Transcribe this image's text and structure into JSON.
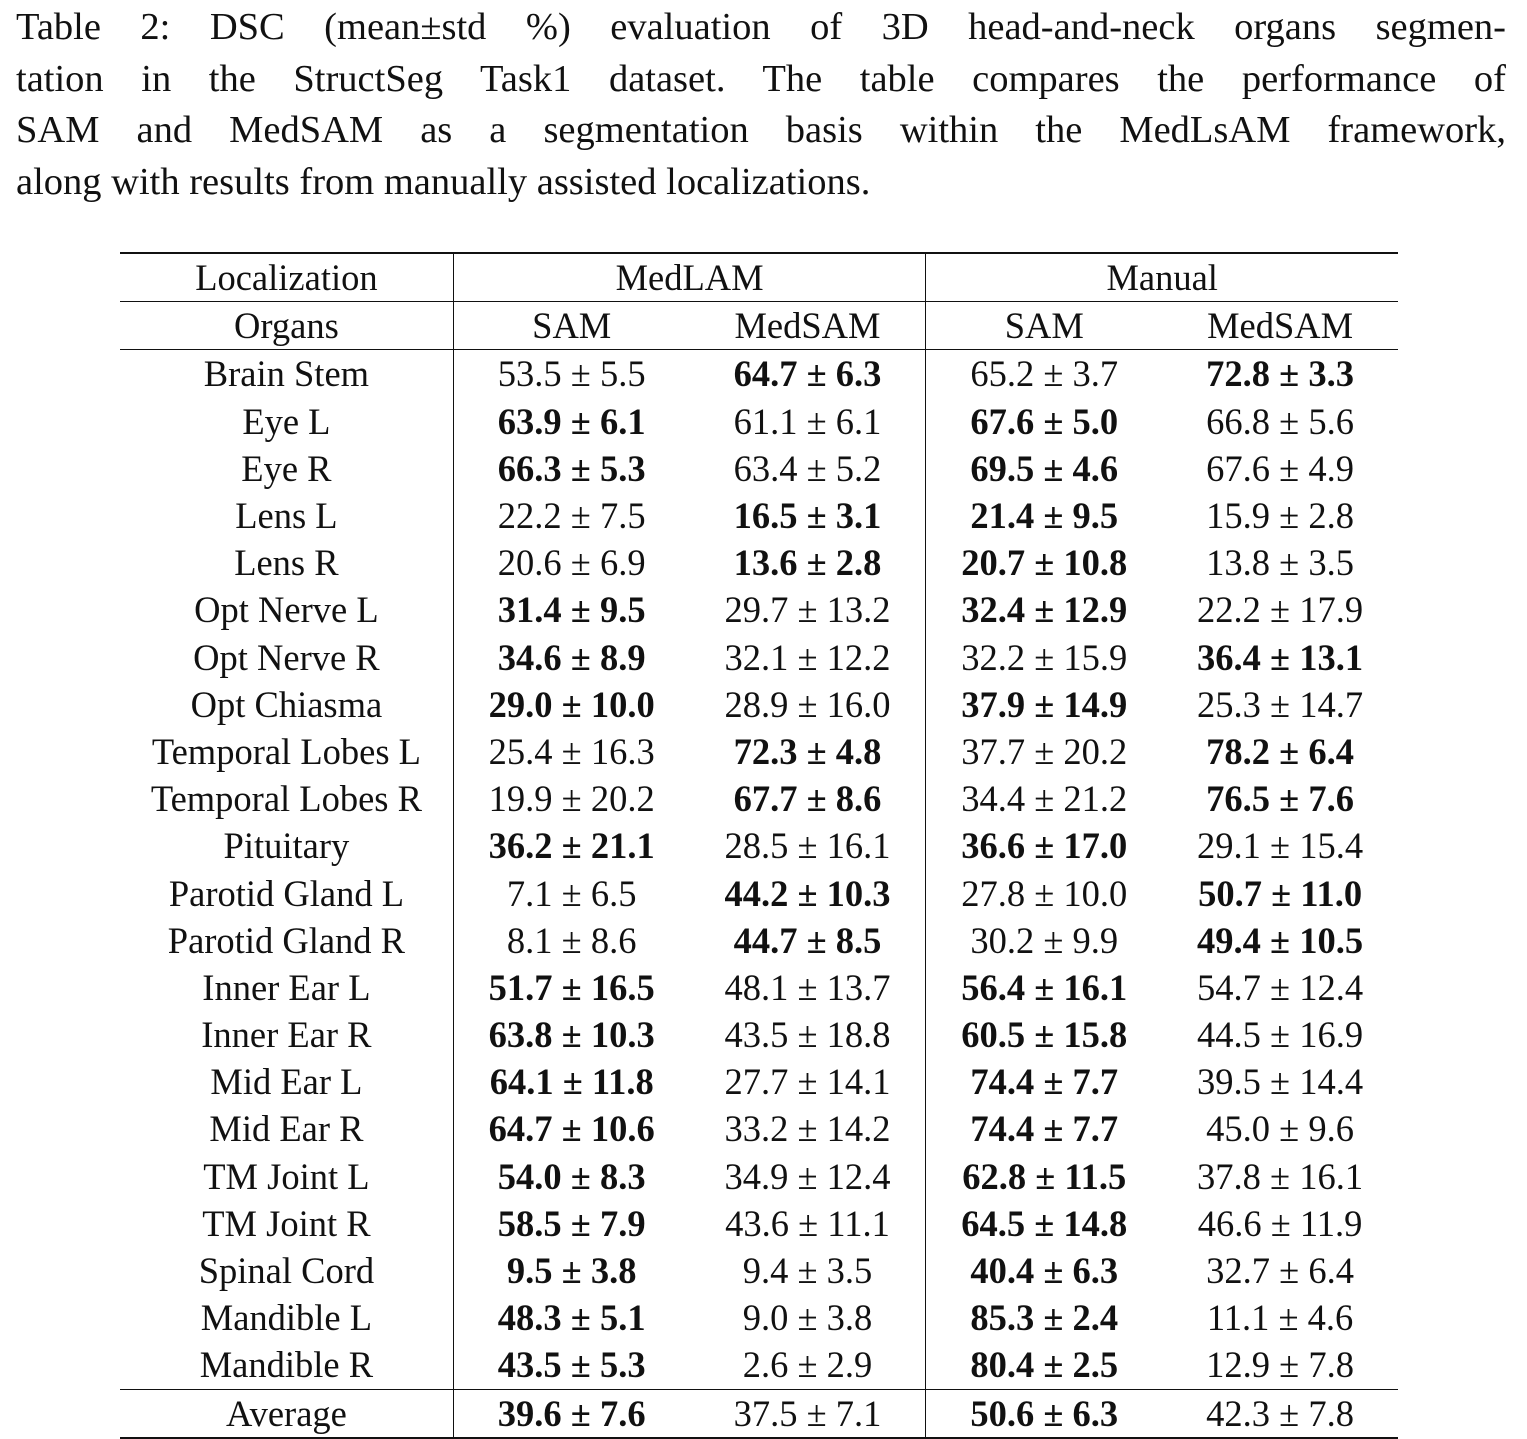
{
  "caption": {
    "lines": [
      "Table 2: DSC (mean±std %) evaluation of 3D head-and-neck organs segmen-",
      "tation in the StructSeg Task1 dataset. The table compares the performance of",
      "SAM and MedSAM as a segmentation basis within the MedLsAM framework,",
      "along with results from manually assisted localizations."
    ]
  },
  "table": {
    "header_row1": {
      "label": "Localization",
      "group1": "MedLAM",
      "group2": "Manual"
    },
    "header_row2": {
      "label": "Organs",
      "c1": "SAM",
      "c2": "MedSAM",
      "c3": "SAM",
      "c4": "MedSAM"
    },
    "rows": [
      {
        "organ": "Brain Stem",
        "v": [
          "53.5 ± 5.5",
          "64.7 ± 6.3",
          "65.2 ± 3.7",
          "72.8 ± 3.3"
        ],
        "bold": [
          false,
          true,
          false,
          true
        ]
      },
      {
        "organ": "Eye L",
        "v": [
          "63.9 ± 6.1",
          "61.1 ± 6.1",
          "67.6 ± 5.0",
          "66.8 ± 5.6"
        ],
        "bold": [
          true,
          false,
          true,
          false
        ]
      },
      {
        "organ": "Eye R",
        "v": [
          "66.3 ± 5.3",
          "63.4 ± 5.2",
          "69.5 ± 4.6",
          "67.6 ± 4.9"
        ],
        "bold": [
          true,
          false,
          true,
          false
        ]
      },
      {
        "organ": "Lens L",
        "v": [
          "22.2 ± 7.5",
          "16.5 ± 3.1",
          "21.4 ± 9.5",
          "15.9 ± 2.8"
        ],
        "bold": [
          false,
          true,
          true,
          false
        ]
      },
      {
        "organ": "Lens R",
        "v": [
          "20.6 ± 6.9",
          "13.6 ± 2.8",
          "20.7 ± 10.8",
          "13.8 ± 3.5"
        ],
        "bold": [
          false,
          true,
          true,
          false
        ]
      },
      {
        "organ": "Opt Nerve L",
        "v": [
          "31.4 ± 9.5",
          "29.7 ± 13.2",
          "32.4 ± 12.9",
          "22.2 ± 17.9"
        ],
        "bold": [
          true,
          false,
          true,
          false
        ]
      },
      {
        "organ": "Opt Nerve R",
        "v": [
          "34.6 ± 8.9",
          "32.1 ± 12.2",
          "32.2 ± 15.9",
          "36.4 ± 13.1"
        ],
        "bold": [
          true,
          false,
          false,
          true
        ]
      },
      {
        "organ": "Opt Chiasma",
        "v": [
          "29.0 ± 10.0",
          "28.9 ± 16.0",
          "37.9 ± 14.9",
          "25.3 ± 14.7"
        ],
        "bold": [
          true,
          false,
          true,
          false
        ]
      },
      {
        "organ": "Temporal Lobes L",
        "v": [
          "25.4 ± 16.3",
          "72.3 ± 4.8",
          "37.7 ± 20.2",
          "78.2 ± 6.4"
        ],
        "bold": [
          false,
          true,
          false,
          true
        ]
      },
      {
        "organ": "Temporal Lobes R",
        "v": [
          "19.9 ± 20.2",
          "67.7 ± 8.6",
          "34.4 ± 21.2",
          "76.5 ± 7.6"
        ],
        "bold": [
          false,
          true,
          false,
          true
        ]
      },
      {
        "organ": "Pituitary",
        "v": [
          "36.2 ± 21.1",
          "28.5 ± 16.1",
          "36.6 ± 17.0",
          "29.1 ± 15.4"
        ],
        "bold": [
          true,
          false,
          true,
          false
        ]
      },
      {
        "organ": "Parotid Gland L",
        "v": [
          "7.1 ± 6.5",
          "44.2 ± 10.3",
          "27.8 ± 10.0",
          "50.7 ± 11.0"
        ],
        "bold": [
          false,
          true,
          false,
          true
        ]
      },
      {
        "organ": "Parotid Gland R",
        "v": [
          "8.1 ± 8.6",
          "44.7 ± 8.5",
          "30.2 ± 9.9",
          "49.4 ± 10.5"
        ],
        "bold": [
          false,
          true,
          false,
          true
        ]
      },
      {
        "organ": "Inner Ear L",
        "v": [
          "51.7 ± 16.5",
          "48.1 ± 13.7",
          "56.4 ± 16.1",
          "54.7 ± 12.4"
        ],
        "bold": [
          true,
          false,
          true,
          false
        ]
      },
      {
        "organ": "Inner Ear R",
        "v": [
          "63.8 ± 10.3",
          "43.5 ± 18.8",
          "60.5 ± 15.8",
          "44.5 ± 16.9"
        ],
        "bold": [
          true,
          false,
          true,
          false
        ]
      },
      {
        "organ": "Mid Ear L",
        "v": [
          "64.1 ± 11.8",
          "27.7 ± 14.1",
          "74.4 ± 7.7",
          "39.5 ± 14.4"
        ],
        "bold": [
          true,
          false,
          true,
          false
        ]
      },
      {
        "organ": "Mid Ear R",
        "v": [
          "64.7 ± 10.6",
          "33.2 ± 14.2",
          "74.4 ± 7.7",
          "45.0 ± 9.6"
        ],
        "bold": [
          true,
          false,
          true,
          false
        ]
      },
      {
        "organ": "TM Joint L",
        "v": [
          "54.0 ± 8.3",
          "34.9 ± 12.4",
          "62.8 ± 11.5",
          "37.8 ± 16.1"
        ],
        "bold": [
          true,
          false,
          true,
          false
        ]
      },
      {
        "organ": "TM Joint R",
        "v": [
          "58.5 ± 7.9",
          "43.6 ± 11.1",
          "64.5 ± 14.8",
          "46.6 ± 11.9"
        ],
        "bold": [
          true,
          false,
          true,
          false
        ]
      },
      {
        "organ": "Spinal Cord",
        "v": [
          "9.5 ± 3.8",
          "9.4 ± 3.5",
          "40.4 ± 6.3",
          "32.7 ± 6.4"
        ],
        "bold": [
          true,
          false,
          true,
          false
        ]
      },
      {
        "organ": "Mandible L",
        "v": [
          "48.3 ± 5.1",
          "9.0 ± 3.8",
          "85.3 ± 2.4",
          "11.1 ± 4.6"
        ],
        "bold": [
          true,
          false,
          true,
          false
        ]
      },
      {
        "organ": "Mandible R",
        "v": [
          "43.5 ± 5.3",
          "2.6 ± 2.9",
          "80.4 ± 2.5",
          "12.9 ± 7.8"
        ],
        "bold": [
          true,
          false,
          true,
          false
        ]
      }
    ],
    "average": {
      "organ": "Average",
      "v": [
        "39.6 ± 7.6",
        "37.5 ± 7.1",
        "50.6 ± 6.3",
        "42.3 ± 7.8"
      ],
      "bold": [
        true,
        false,
        true,
        false
      ]
    }
  }
}
